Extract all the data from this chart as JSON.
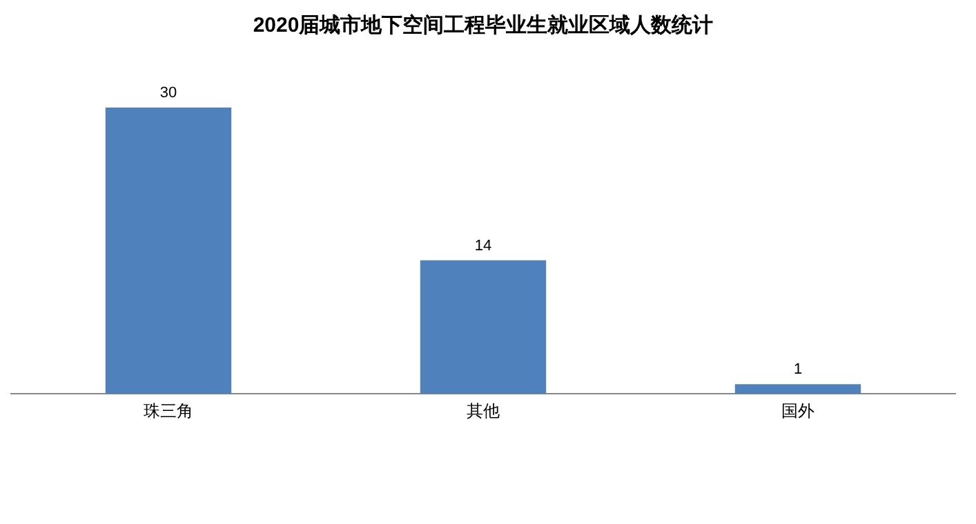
{
  "chart_data": {
    "type": "bar",
    "title": "2020届城市地下空间工程毕业生就业区域人数统计",
    "categories": [
      "珠三角",
      "其他",
      "国外"
    ],
    "values": [
      30,
      14,
      1
    ],
    "color": "#4f81bd",
    "data_labels": true,
    "grid": false,
    "legend": false
  }
}
